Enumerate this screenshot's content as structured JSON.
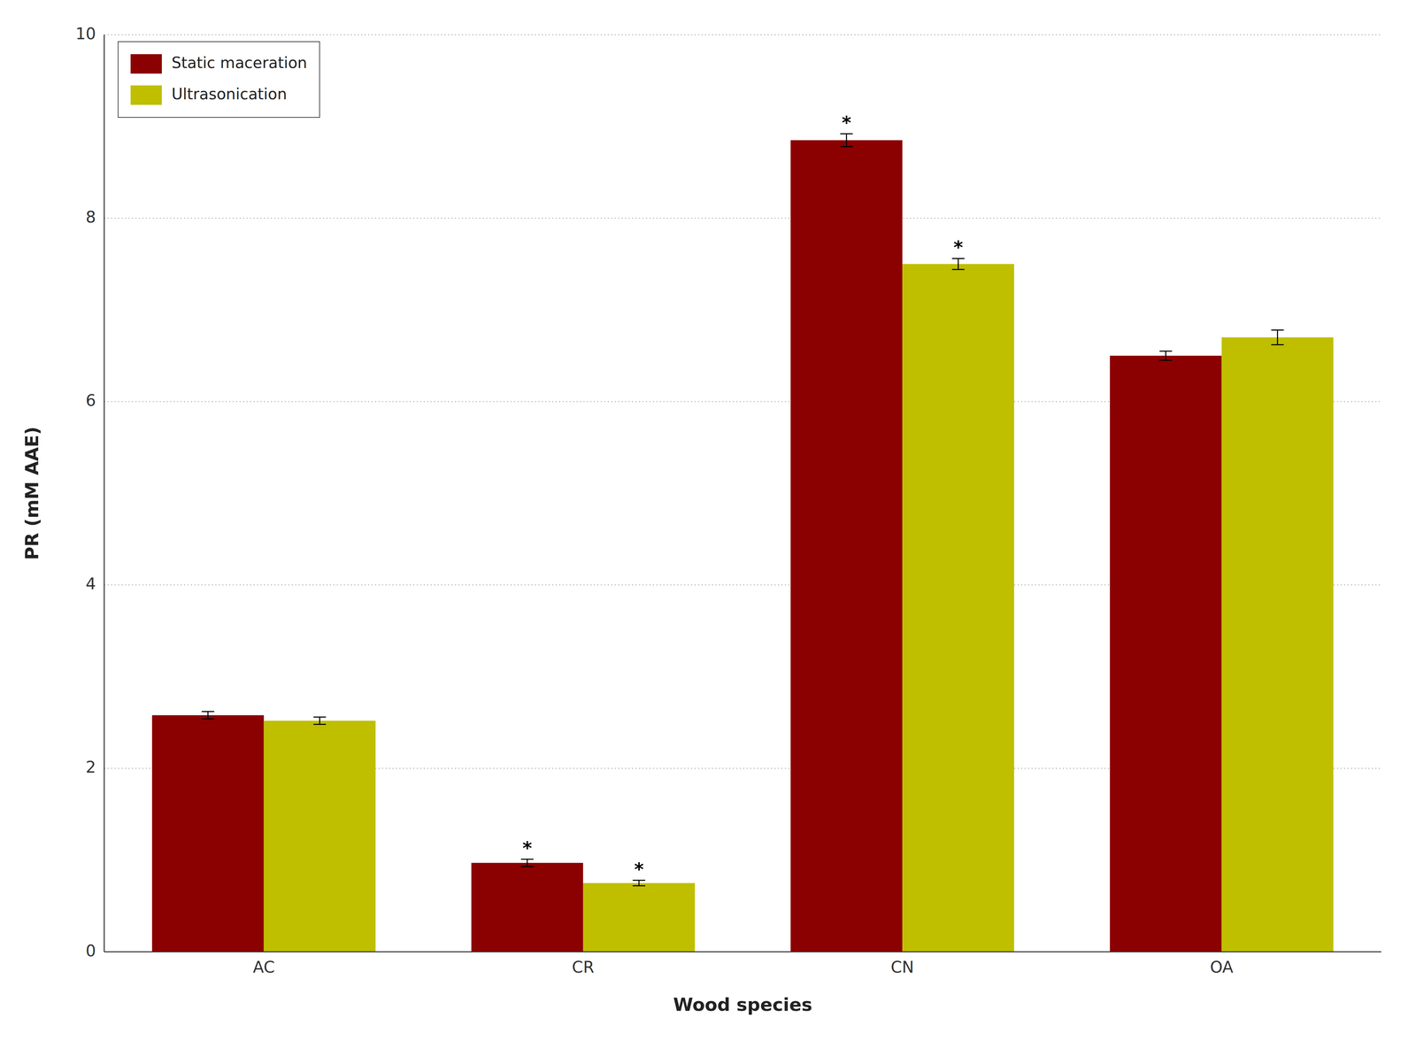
{
  "chart_data": {
    "type": "bar",
    "categories": [
      "AC",
      "CR",
      "CN",
      "OA"
    ],
    "series": [
      {
        "name": "Static maceration",
        "color": "#8B0000",
        "values": [
          2.58,
          0.97,
          8.85,
          6.5
        ],
        "errors": [
          0.04,
          0.04,
          0.07,
          0.05
        ]
      },
      {
        "name": "Ultrasonication",
        "color": "#BFBF00",
        "values": [
          2.52,
          0.75,
          7.5,
          6.7
        ],
        "errors": [
          0.04,
          0.03,
          0.06,
          0.08
        ]
      }
    ],
    "xlabel": "Wood species",
    "ylabel": "PR (mM AAE)",
    "ylim": [
      0,
      10
    ],
    "yticks": [
      0,
      2,
      4,
      6,
      8,
      10
    ],
    "grid": true,
    "legend": "upper left",
    "annotations": [
      {
        "text": "*",
        "series": "Static maceration",
        "category": "CR"
      },
      {
        "text": "*",
        "series": "Ultrasonication",
        "category": "CR"
      },
      {
        "text": "*",
        "series": "Static maceration",
        "category": "CN"
      },
      {
        "text": "*",
        "series": "Ultrasonication",
        "category": "CN"
      }
    ]
  }
}
